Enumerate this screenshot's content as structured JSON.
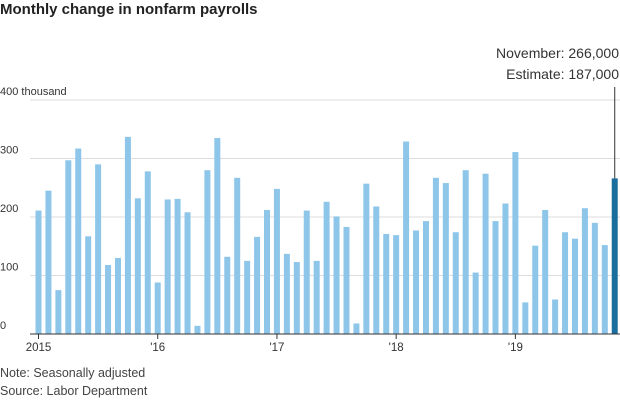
{
  "title": "Monthly change in nonfarm payrolls",
  "notes": {
    "note": "Note: Seasonally adjusted",
    "source": "Source: Labor Department"
  },
  "colors": {
    "bar": "#8ec6ea",
    "highlight": "#1a6e9e",
    "grid": "#dddddd",
    "axis": "#333333"
  },
  "chart_data": {
    "type": "bar",
    "title": "Monthly change in nonfarm payrolls",
    "ylim": [
      0,
      400
    ],
    "yticks": [
      0,
      100,
      200,
      300,
      400
    ],
    "ytick_labels": [
      "0",
      "100",
      "200",
      "300",
      "400 thousand"
    ],
    "xtick_labels": [
      "2015",
      "'16",
      "'17",
      "'18",
      "'19"
    ],
    "grid": true,
    "annotation": {
      "lines": [
        "November: 266,000",
        "Estimate: 187,000"
      ],
      "index": 58
    },
    "categories": [
      "2015-01",
      "2015-02",
      "2015-03",
      "2015-04",
      "2015-05",
      "2015-06",
      "2015-07",
      "2015-08",
      "2015-09",
      "2015-10",
      "2015-11",
      "2015-12",
      "2016-01",
      "2016-02",
      "2016-03",
      "2016-04",
      "2016-05",
      "2016-06",
      "2016-07",
      "2016-08",
      "2016-09",
      "2016-10",
      "2016-11",
      "2016-12",
      "2017-01",
      "2017-02",
      "2017-03",
      "2017-04",
      "2017-05",
      "2017-06",
      "2017-07",
      "2017-08",
      "2017-09",
      "2017-10",
      "2017-11",
      "2017-12",
      "2018-01",
      "2018-02",
      "2018-03",
      "2018-04",
      "2018-05",
      "2018-06",
      "2018-07",
      "2018-08",
      "2018-09",
      "2018-10",
      "2018-11",
      "2018-12",
      "2019-01",
      "2019-02",
      "2019-03",
      "2019-04",
      "2019-05",
      "2019-06",
      "2019-07",
      "2019-08",
      "2019-09",
      "2019-10",
      "2019-11"
    ],
    "values": [
      211,
      245,
      75,
      297,
      317,
      167,
      290,
      118,
      130,
      337,
      232,
      278,
      88,
      230,
      231,
      208,
      14,
      280,
      335,
      132,
      267,
      125,
      166,
      212,
      248,
      137,
      123,
      211,
      125,
      226,
      201,
      183,
      18,
      257,
      218,
      171,
      169,
      329,
      177,
      193,
      267,
      258,
      174,
      280,
      105,
      274,
      193,
      223,
      311,
      54,
      151,
      212,
      59,
      174,
      163,
      215,
      190,
      152,
      266
    ]
  }
}
